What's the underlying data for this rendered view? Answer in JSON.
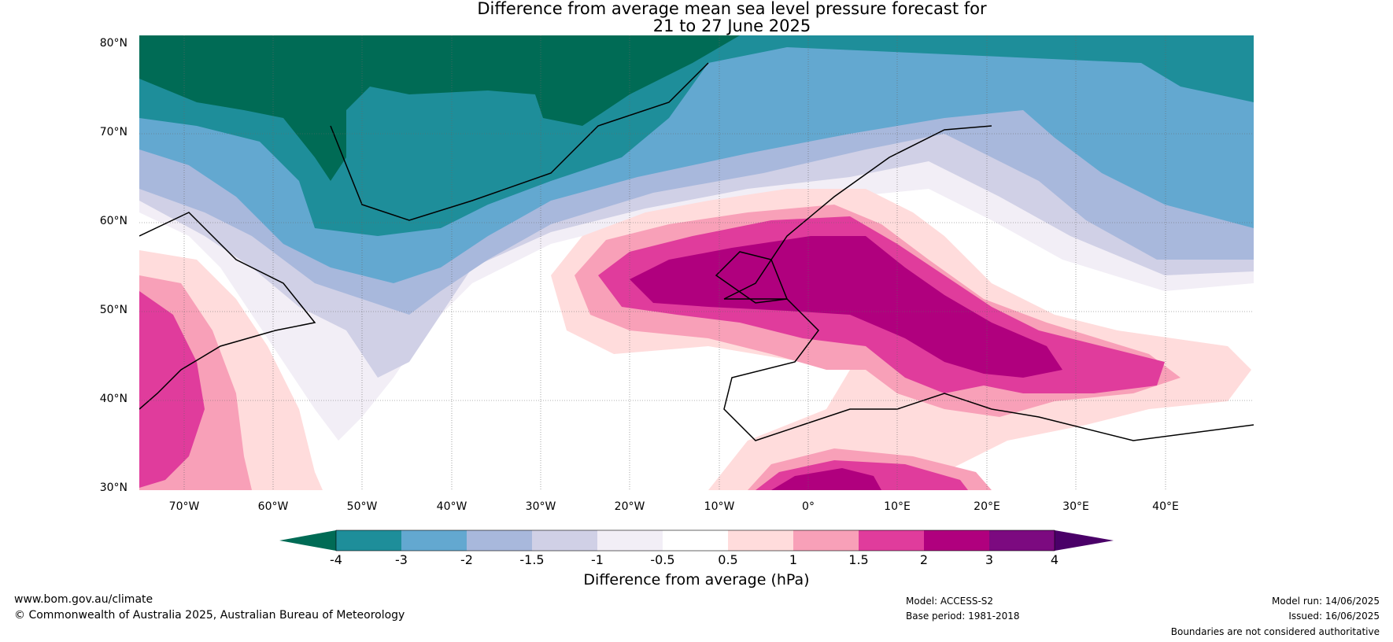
{
  "title": {
    "line1": "Difference from average mean sea level pressure forecast for",
    "line2": "21 to 27 June 2025"
  },
  "axes": {
    "lat_labels": [
      "80°N",
      "70°N",
      "60°N",
      "50°N",
      "40°N",
      "30°N"
    ],
    "lon_labels": [
      "70°W",
      "60°W",
      "50°W",
      "40°W",
      "30°W",
      "20°W",
      "10°W",
      "0°",
      "10°E",
      "20°E",
      "30°E",
      "40°E"
    ]
  },
  "colorbar": {
    "title": "Difference from average (hPa)",
    "tick_labels": [
      "-4",
      "-3",
      "-2",
      "-1.5",
      "-1",
      "-0.5",
      "0.5",
      "1",
      "1.5",
      "2",
      "3",
      "4"
    ],
    "colors": [
      "#006b55",
      "#1e8e9a",
      "#63a8d0",
      "#a8b8dc",
      "#d0d0e6",
      "#f2eef6",
      "#ffffff",
      "#ffdcdc",
      "#f8a0b8",
      "#e03c9c",
      "#b0007e",
      "#7c0a80",
      "#4a0068"
    ]
  },
  "footer": {
    "website": "www.bom.gov.au/climate",
    "copyright": "© Commonwealth of Australia 2025, Australian Bureau of Meteorology",
    "model": "Model: ACCESS-S2",
    "base_period": "Base period: 1981-2018",
    "model_run": "Model run: 14/06/2025",
    "issued": "Issued: 16/06/2025",
    "disclaimer": "Boundaries are not considered authoritative"
  },
  "map_data": {
    "extent": {
      "lon_min": -75,
      "lon_max": 50,
      "lat_min": 30,
      "lat_max": 80
    },
    "regions": [
      {
        "name": "strong-low-greenland",
        "color": "#006b55"
      },
      {
        "name": "low-north-atlantic",
        "color": "#1e8e9a"
      },
      {
        "name": "high-western-europe",
        "color": "#b0007e"
      },
      {
        "name": "high-east-coast-north-america",
        "color": "#e03c9c"
      }
    ]
  }
}
